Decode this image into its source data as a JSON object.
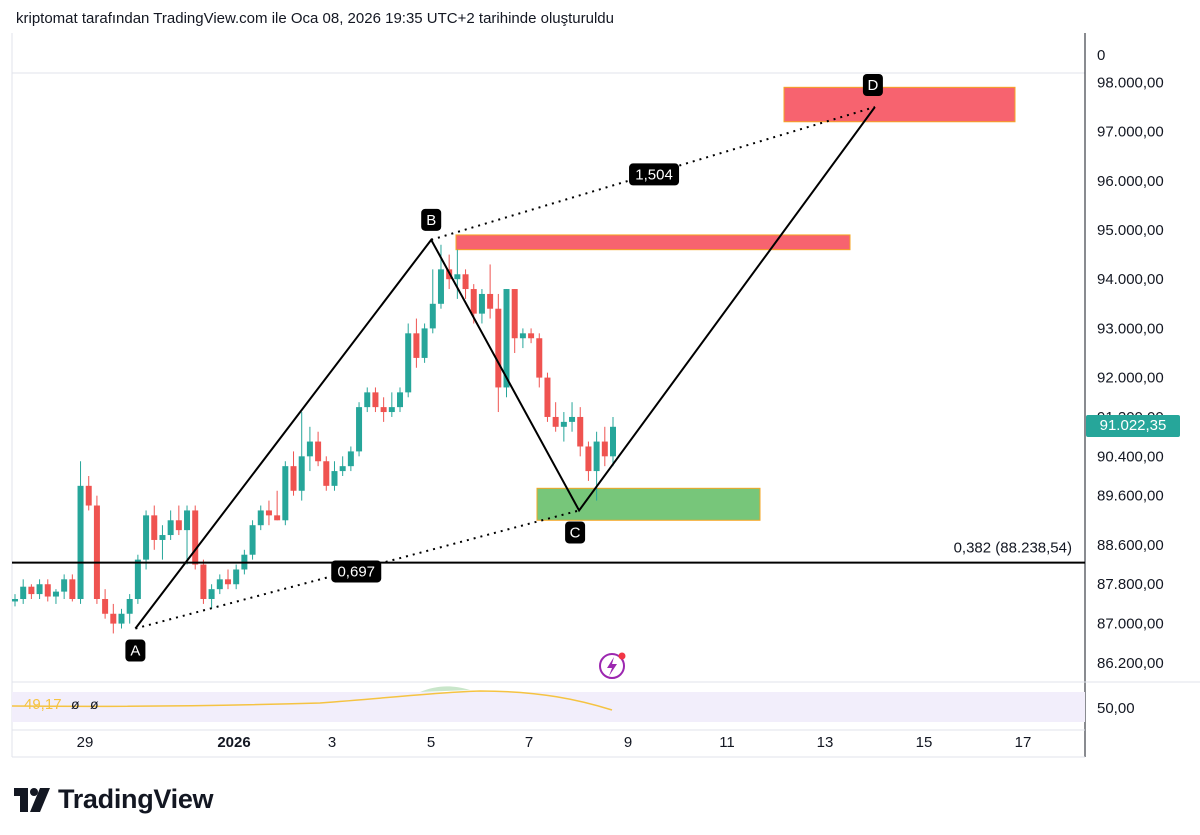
{
  "header": {
    "caption": "kriptomat tarafından TradingView.com ile Oca 08, 2026 19:35 UTC+2 tarihinde oluşturuldu"
  },
  "price_axis": {
    "top_label": "0",
    "labels": [
      "98.000,00",
      "97.000,00",
      "96.000,00",
      "95.000,00",
      "94.000,00",
      "93.000,00",
      "92.000,00",
      "91.200,00",
      "90.400,00",
      "89.600,00",
      "88.600,00",
      "87.800,00",
      "87.000,00",
      "86.200,00"
    ],
    "indicator_label": "50,00"
  },
  "current_price": "91.022,35",
  "time_axis": {
    "labels": [
      "29",
      "2026",
      "3",
      "5",
      "7",
      "9",
      "11",
      "13",
      "15",
      "17"
    ]
  },
  "indicator": {
    "value": "49,17",
    "null1": "ø",
    "null2": "ø"
  },
  "annotations": {
    "point_a": "A",
    "point_b": "B",
    "point_c": "C",
    "point_d": "D",
    "ratio_ac": "0,697",
    "ratio_bd": "1,504",
    "fib_level": "0,382 (88.238,54)"
  },
  "logo": {
    "text": "TradingView"
  },
  "colors": {
    "up": "#26a69a",
    "down": "#ef5350",
    "zone_red": "#f7636f",
    "zone_green": "#77c67a",
    "zone_border": "#f5a623",
    "rsi_line": "#f5c342"
  },
  "chart_data": {
    "type": "candlestick",
    "x_axis": "date",
    "y_axis_unit": "USD",
    "pattern": "ABCD harmonic",
    "points": {
      "A": {
        "date": "2025-12-30",
        "price": 86900
      },
      "B": {
        "date": "2026-01-05",
        "price": 94800
      },
      "C": {
        "date": "2026-01-08",
        "price": 89300
      },
      "D": {
        "date": "2026-01-14",
        "price": 97500
      }
    },
    "fib_level": {
      "ratio": 0.382,
      "price": 88238.54
    },
    "zones": [
      {
        "type": "resistance",
        "price_low": 94600,
        "price_high": 94900
      },
      {
        "type": "resistance",
        "price_low": 97200,
        "price_high": 97900
      },
      {
        "type": "support",
        "price_low": 89100,
        "price_high": 89750
      }
    ],
    "candles": [
      {
        "o": 87450,
        "h": 87600,
        "l": 87350,
        "c": 87500
      },
      {
        "o": 87500,
        "h": 87900,
        "l": 87400,
        "c": 87750
      },
      {
        "o": 87750,
        "h": 87800,
        "l": 87500,
        "c": 87600
      },
      {
        "o": 87600,
        "h": 87900,
        "l": 87500,
        "c": 87800
      },
      {
        "o": 87800,
        "h": 87900,
        "l": 87450,
        "c": 87550
      },
      {
        "o": 87550,
        "h": 87700,
        "l": 87400,
        "c": 87650
      },
      {
        "o": 87650,
        "h": 88000,
        "l": 87500,
        "c": 87900
      },
      {
        "o": 87900,
        "h": 88000,
        "l": 87450,
        "c": 87500
      },
      {
        "o": 87500,
        "h": 90300,
        "l": 87400,
        "c": 89800
      },
      {
        "o": 89800,
        "h": 90000,
        "l": 89300,
        "c": 89400
      },
      {
        "o": 89400,
        "h": 89600,
        "l": 87400,
        "c": 87500
      },
      {
        "o": 87500,
        "h": 87700,
        "l": 87100,
        "c": 87200
      },
      {
        "o": 87200,
        "h": 87400,
        "l": 86800,
        "c": 87000
      },
      {
        "o": 87000,
        "h": 87300,
        "l": 86900,
        "c": 87200
      },
      {
        "o": 87200,
        "h": 87600,
        "l": 87000,
        "c": 87500
      },
      {
        "o": 87500,
        "h": 88400,
        "l": 87400,
        "c": 88300
      },
      {
        "o": 88300,
        "h": 89300,
        "l": 88100,
        "c": 89200
      },
      {
        "o": 89200,
        "h": 89400,
        "l": 88500,
        "c": 88700
      },
      {
        "o": 88700,
        "h": 89000,
        "l": 88300,
        "c": 88800
      },
      {
        "o": 88800,
        "h": 89300,
        "l": 88700,
        "c": 89100
      },
      {
        "o": 89100,
        "h": 89400,
        "l": 88800,
        "c": 88900
      },
      {
        "o": 88900,
        "h": 89400,
        "l": 88200,
        "c": 89300
      },
      {
        "o": 89300,
        "h": 89400,
        "l": 88100,
        "c": 88200
      },
      {
        "o": 88200,
        "h": 88300,
        "l": 87400,
        "c": 87500
      },
      {
        "o": 87500,
        "h": 87800,
        "l": 87300,
        "c": 87700
      },
      {
        "o": 87700,
        "h": 88000,
        "l": 87600,
        "c": 87900
      },
      {
        "o": 87900,
        "h": 88100,
        "l": 87700,
        "c": 87800
      },
      {
        "o": 87800,
        "h": 88200,
        "l": 87700,
        "c": 88100
      },
      {
        "o": 88100,
        "h": 88500,
        "l": 88000,
        "c": 88400
      },
      {
        "o": 88400,
        "h": 89100,
        "l": 88300,
        "c": 89000
      },
      {
        "o": 89000,
        "h": 89400,
        "l": 88900,
        "c": 89300
      },
      {
        "o": 89300,
        "h": 89500,
        "l": 89000,
        "c": 89200
      },
      {
        "o": 89200,
        "h": 89700,
        "l": 89100,
        "c": 89100
      },
      {
        "o": 89100,
        "h": 90300,
        "l": 89000,
        "c": 90200
      },
      {
        "o": 90200,
        "h": 90500,
        "l": 89600,
        "c": 89700
      },
      {
        "o": 89700,
        "h": 91300,
        "l": 89500,
        "c": 90400
      },
      {
        "o": 90400,
        "h": 91000,
        "l": 90100,
        "c": 90700
      },
      {
        "o": 90700,
        "h": 90900,
        "l": 90200,
        "c": 90300
      },
      {
        "o": 90300,
        "h": 90400,
        "l": 89700,
        "c": 89800
      },
      {
        "o": 89800,
        "h": 90300,
        "l": 89700,
        "c": 90100
      },
      {
        "o": 90100,
        "h": 90400,
        "l": 90000,
        "c": 90200
      },
      {
        "o": 90200,
        "h": 90600,
        "l": 90100,
        "c": 90500
      },
      {
        "o": 90500,
        "h": 91500,
        "l": 90400,
        "c": 91400
      },
      {
        "o": 91400,
        "h": 91800,
        "l": 91300,
        "c": 91700
      },
      {
        "o": 91700,
        "h": 91800,
        "l": 91300,
        "c": 91400
      },
      {
        "o": 91400,
        "h": 91600,
        "l": 91100,
        "c": 91300
      },
      {
        "o": 91300,
        "h": 91700,
        "l": 91200,
        "c": 91400
      },
      {
        "o": 91400,
        "h": 91800,
        "l": 91300,
        "c": 91700
      },
      {
        "o": 91700,
        "h": 93100,
        "l": 91600,
        "c": 92900
      },
      {
        "o": 92900,
        "h": 93200,
        "l": 92200,
        "c": 92400
      },
      {
        "o": 92400,
        "h": 93100,
        "l": 92300,
        "c": 93000
      },
      {
        "o": 93000,
        "h": 94200,
        "l": 92900,
        "c": 93500
      },
      {
        "o": 93500,
        "h": 94700,
        "l": 93400,
        "c": 94200
      },
      {
        "o": 94200,
        "h": 94500,
        "l": 93800,
        "c": 94000
      },
      {
        "o": 94000,
        "h": 94600,
        "l": 93600,
        "c": 94100
      },
      {
        "o": 94100,
        "h": 94200,
        "l": 93600,
        "c": 93800
      },
      {
        "o": 93800,
        "h": 93900,
        "l": 93100,
        "c": 93300
      },
      {
        "o": 93300,
        "h": 93800,
        "l": 93100,
        "c": 93700
      },
      {
        "o": 93700,
        "h": 94300,
        "l": 93200,
        "c": 93400
      },
      {
        "o": 93400,
        "h": 93700,
        "l": 91300,
        "c": 91800
      },
      {
        "o": 91800,
        "h": 93800,
        "l": 91600,
        "c": 93800
      },
      {
        "o": 93800,
        "h": 93800,
        "l": 92500,
        "c": 92800
      },
      {
        "o": 92800,
        "h": 93000,
        "l": 92600,
        "c": 92900
      },
      {
        "o": 92900,
        "h": 93000,
        "l": 92700,
        "c": 92800
      },
      {
        "o": 92800,
        "h": 92900,
        "l": 91800,
        "c": 92000
      },
      {
        "o": 92000,
        "h": 92100,
        "l": 91100,
        "c": 91200
      },
      {
        "o": 91200,
        "h": 91500,
        "l": 90900,
        "c": 91000
      },
      {
        "o": 91000,
        "h": 91300,
        "l": 90700,
        "c": 91100
      },
      {
        "o": 91100,
        "h": 91500,
        "l": 90900,
        "c": 91200
      },
      {
        "o": 91200,
        "h": 91400,
        "l": 90400,
        "c": 90600
      },
      {
        "o": 90600,
        "h": 90700,
        "l": 89900,
        "c": 90100
      },
      {
        "o": 90100,
        "h": 90900,
        "l": 89500,
        "c": 90700
      },
      {
        "o": 90700,
        "h": 91000,
        "l": 90200,
        "c": 90400
      },
      {
        "o": 90400,
        "h": 91200,
        "l": 90200,
        "c": 91000
      }
    ],
    "rsi": {
      "value": 49.17
    }
  }
}
